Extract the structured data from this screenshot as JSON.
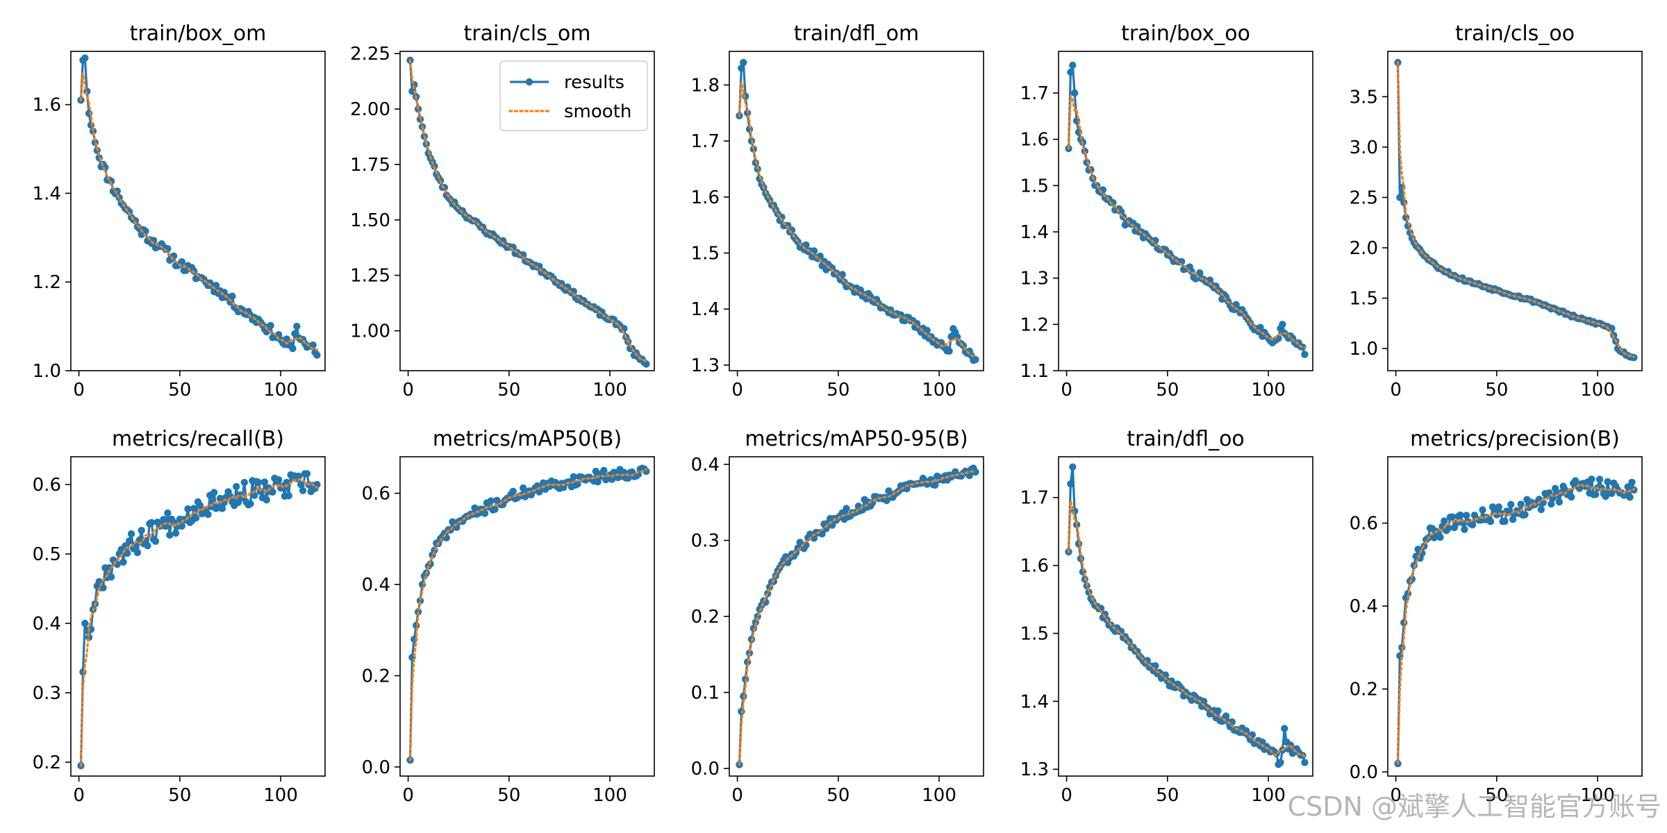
{
  "figure": {
    "legend": {
      "results_label": "results",
      "smooth_label": "smooth",
      "location": "upper-right of train/cls_om"
    },
    "watermark": "CSDN @斌擎人工智能官方账号",
    "colors": {
      "results": "#1f77b4",
      "smooth": "#ff7f0e",
      "axes": "#000000",
      "background": "#ffffff"
    }
  },
  "chart_data": [
    {
      "type": "line",
      "title": "train/box_om",
      "x_ticks": [
        0,
        50,
        100
      ],
      "xlim": [
        -4,
        122
      ],
      "ylim": [
        1.0,
        1.72
      ],
      "y_ticks": [
        1.0,
        1.2,
        1.4,
        1.6
      ],
      "y_tick_labels": [
        "1.0",
        "1.2",
        "1.4",
        "1.6"
      ],
      "legend": false,
      "anchors": [
        [
          1,
          1.61
        ],
        [
          2,
          1.7
        ],
        [
          3,
          1.705
        ],
        [
          4,
          1.63
        ],
        [
          5,
          1.58
        ],
        [
          7,
          1.54
        ],
        [
          10,
          1.48
        ],
        [
          15,
          1.43
        ],
        [
          20,
          1.39
        ],
        [
          30,
          1.32
        ],
        [
          40,
          1.28
        ],
        [
          50,
          1.24
        ],
        [
          60,
          1.21
        ],
        [
          70,
          1.18
        ],
        [
          80,
          1.14
        ],
        [
          90,
          1.11
        ],
        [
          100,
          1.07
        ],
        [
          106,
          1.05
        ],
        [
          108,
          1.1
        ],
        [
          110,
          1.07
        ],
        [
          115,
          1.055
        ],
        [
          118,
          1.035
        ]
      ],
      "noise": 0.012,
      "seed": 11
    },
    {
      "type": "line",
      "title": "train/cls_om",
      "x_ticks": [
        0,
        50,
        100
      ],
      "xlim": [
        -4,
        122
      ],
      "ylim": [
        0.82,
        2.26
      ],
      "y_ticks": [
        1.0,
        1.25,
        1.5,
        1.75,
        2.0,
        2.25
      ],
      "y_tick_labels": [
        "1.00",
        "1.25",
        "1.50",
        "1.75",
        "2.00",
        "2.25"
      ],
      "legend": true,
      "anchors": [
        [
          1,
          2.22
        ],
        [
          2,
          2.08
        ],
        [
          3,
          2.11
        ],
        [
          5,
          2.0
        ],
        [
          7,
          1.92
        ],
        [
          10,
          1.8
        ],
        [
          15,
          1.69
        ],
        [
          20,
          1.6
        ],
        [
          30,
          1.51
        ],
        [
          40,
          1.44
        ],
        [
          50,
          1.38
        ],
        [
          60,
          1.31
        ],
        [
          70,
          1.25
        ],
        [
          80,
          1.18
        ],
        [
          90,
          1.11
        ],
        [
          100,
          1.05
        ],
        [
          107,
          1.01
        ],
        [
          110,
          0.92
        ],
        [
          115,
          0.87
        ],
        [
          118,
          0.85
        ]
      ],
      "noise": 0.012,
      "seed": 23
    },
    {
      "type": "line",
      "title": "train/dfl_om",
      "x_ticks": [
        0,
        50,
        100
      ],
      "xlim": [
        -4,
        122
      ],
      "ylim": [
        1.29,
        1.86
      ],
      "y_ticks": [
        1.3,
        1.4,
        1.5,
        1.6,
        1.7,
        1.8
      ],
      "y_tick_labels": [
        "1.3",
        "1.4",
        "1.5",
        "1.6",
        "1.7",
        "1.8"
      ],
      "legend": false,
      "anchors": [
        [
          1,
          1.745
        ],
        [
          2,
          1.83
        ],
        [
          3,
          1.84
        ],
        [
          4,
          1.78
        ],
        [
          5,
          1.75
        ],
        [
          7,
          1.7
        ],
        [
          10,
          1.65
        ],
        [
          15,
          1.6
        ],
        [
          20,
          1.57
        ],
        [
          30,
          1.52
        ],
        [
          40,
          1.49
        ],
        [
          50,
          1.46
        ],
        [
          60,
          1.43
        ],
        [
          70,
          1.41
        ],
        [
          80,
          1.39
        ],
        [
          90,
          1.365
        ],
        [
          100,
          1.34
        ],
        [
          105,
          1.325
        ],
        [
          107,
          1.365
        ],
        [
          110,
          1.34
        ],
        [
          115,
          1.325
        ],
        [
          118,
          1.31
        ]
      ],
      "noise": 0.008,
      "seed": 37
    },
    {
      "type": "line",
      "title": "train/box_oo",
      "x_ticks": [
        0,
        50,
        100
      ],
      "xlim": [
        -4,
        122
      ],
      "ylim": [
        1.1,
        1.79
      ],
      "y_ticks": [
        1.1,
        1.2,
        1.3,
        1.4,
        1.5,
        1.6,
        1.7
      ],
      "y_tick_labels": [
        "1.1",
        "1.2",
        "1.3",
        "1.4",
        "1.5",
        "1.6",
        "1.7"
      ],
      "legend": false,
      "anchors": [
        [
          1,
          1.58
        ],
        [
          2,
          1.745
        ],
        [
          3,
          1.76
        ],
        [
          4,
          1.7
        ],
        [
          5,
          1.64
        ],
        [
          7,
          1.6
        ],
        [
          10,
          1.55
        ],
        [
          15,
          1.5
        ],
        [
          20,
          1.47
        ],
        [
          30,
          1.42
        ],
        [
          40,
          1.39
        ],
        [
          50,
          1.35
        ],
        [
          60,
          1.32
        ],
        [
          70,
          1.29
        ],
        [
          80,
          1.25
        ],
        [
          90,
          1.21
        ],
        [
          100,
          1.17
        ],
        [
          105,
          1.17
        ],
        [
          107,
          1.2
        ],
        [
          110,
          1.17
        ],
        [
          115,
          1.16
        ],
        [
          118,
          1.135
        ]
      ],
      "noise": 0.01,
      "seed": 41
    },
    {
      "type": "line",
      "title": "train/cls_oo",
      "x_ticks": [
        0,
        50,
        100
      ],
      "xlim": [
        -4,
        122
      ],
      "ylim": [
        0.78,
        3.95
      ],
      "y_ticks": [
        1.0,
        1.5,
        2.0,
        2.5,
        3.0,
        3.5
      ],
      "y_tick_labels": [
        "1.0",
        "1.5",
        "2.0",
        "2.5",
        "3.0",
        "3.5"
      ],
      "legend": false,
      "anchors": [
        [
          1,
          3.84
        ],
        [
          2,
          2.5
        ],
        [
          3,
          2.6
        ],
        [
          5,
          2.3
        ],
        [
          7,
          2.15
        ],
        [
          10,
          2.02
        ],
        [
          15,
          1.91
        ],
        [
          20,
          1.82
        ],
        [
          30,
          1.71
        ],
        [
          40,
          1.64
        ],
        [
          50,
          1.58
        ],
        [
          60,
          1.52
        ],
        [
          70,
          1.46
        ],
        [
          80,
          1.38
        ],
        [
          90,
          1.3
        ],
        [
          100,
          1.25
        ],
        [
          107,
          1.2
        ],
        [
          110,
          1.0
        ],
        [
          115,
          0.93
        ],
        [
          118,
          0.91
        ]
      ],
      "noise": 0.015,
      "seed": 53
    },
    {
      "type": "line",
      "title": "metrics/recall(B)",
      "x_ticks": [
        0,
        50,
        100
      ],
      "xlim": [
        -4,
        122
      ],
      "ylim": [
        0.18,
        0.64
      ],
      "y_ticks": [
        0.2,
        0.3,
        0.4,
        0.5,
        0.6
      ],
      "y_tick_labels": [
        "0.2",
        "0.3",
        "0.4",
        "0.5",
        "0.6"
      ],
      "legend": false,
      "anchors": [
        [
          1,
          0.195
        ],
        [
          2,
          0.33
        ],
        [
          3,
          0.4
        ],
        [
          5,
          0.38
        ],
        [
          7,
          0.42
        ],
        [
          10,
          0.46
        ],
        [
          15,
          0.48
        ],
        [
          20,
          0.5
        ],
        [
          30,
          0.52
        ],
        [
          40,
          0.54
        ],
        [
          50,
          0.55
        ],
        [
          60,
          0.57
        ],
        [
          70,
          0.58
        ],
        [
          80,
          0.585
        ],
        [
          90,
          0.59
        ],
        [
          100,
          0.595
        ],
        [
          110,
          0.6
        ],
        [
          118,
          0.6
        ]
      ],
      "noise": 0.018,
      "seed": 67
    },
    {
      "type": "line",
      "title": "metrics/mAP50(B)",
      "x_ticks": [
        0,
        50,
        100
      ],
      "xlim": [
        -4,
        122
      ],
      "ylim": [
        -0.02,
        0.68
      ],
      "y_ticks": [
        0.0,
        0.2,
        0.4,
        0.6
      ],
      "y_tick_labels": [
        "0.0",
        "0.2",
        "0.4",
        "0.6"
      ],
      "legend": false,
      "anchors": [
        [
          1,
          0.015
        ],
        [
          2,
          0.24
        ],
        [
          3,
          0.28
        ],
        [
          5,
          0.34
        ],
        [
          7,
          0.4
        ],
        [
          10,
          0.44
        ],
        [
          15,
          0.49
        ],
        [
          20,
          0.52
        ],
        [
          30,
          0.55
        ],
        [
          40,
          0.57
        ],
        [
          50,
          0.59
        ],
        [
          60,
          0.605
        ],
        [
          70,
          0.615
        ],
        [
          80,
          0.625
        ],
        [
          90,
          0.635
        ],
        [
          100,
          0.64
        ],
        [
          110,
          0.645
        ],
        [
          118,
          0.648
        ]
      ],
      "noise": 0.012,
      "seed": 71
    },
    {
      "type": "line",
      "title": "metrics/mAP50-95(B)",
      "x_ticks": [
        0,
        50,
        100
      ],
      "xlim": [
        -4,
        122
      ],
      "ylim": [
        -0.01,
        0.41
      ],
      "y_ticks": [
        0.0,
        0.1,
        0.2,
        0.3,
        0.4
      ],
      "y_tick_labels": [
        "0.0",
        "0.1",
        "0.2",
        "0.3",
        "0.4"
      ],
      "legend": false,
      "anchors": [
        [
          1,
          0.005
        ],
        [
          2,
          0.075
        ],
        [
          3,
          0.095
        ],
        [
          5,
          0.14
        ],
        [
          7,
          0.17
        ],
        [
          10,
          0.2
        ],
        [
          15,
          0.23
        ],
        [
          20,
          0.26
        ],
        [
          30,
          0.29
        ],
        [
          40,
          0.31
        ],
        [
          50,
          0.33
        ],
        [
          60,
          0.345
        ],
        [
          70,
          0.355
        ],
        [
          80,
          0.365
        ],
        [
          90,
          0.375
        ],
        [
          100,
          0.38
        ],
        [
          110,
          0.385
        ],
        [
          118,
          0.39
        ]
      ],
      "noise": 0.007,
      "seed": 83
    },
    {
      "type": "line",
      "title": "train/dfl_oo",
      "x_ticks": [
        0,
        50,
        100
      ],
      "xlim": [
        -4,
        122
      ],
      "ylim": [
        1.29,
        1.76
      ],
      "y_ticks": [
        1.3,
        1.4,
        1.5,
        1.6,
        1.7
      ],
      "y_tick_labels": [
        "1.3",
        "1.4",
        "1.5",
        "1.6",
        "1.7"
      ],
      "legend": false,
      "anchors": [
        [
          1,
          1.62
        ],
        [
          2,
          1.72
        ],
        [
          3,
          1.745
        ],
        [
          4,
          1.68
        ],
        [
          5,
          1.66
        ],
        [
          7,
          1.61
        ],
        [
          10,
          1.57
        ],
        [
          15,
          1.54
        ],
        [
          20,
          1.52
        ],
        [
          30,
          1.49
        ],
        [
          40,
          1.46
        ],
        [
          50,
          1.43
        ],
        [
          60,
          1.41
        ],
        [
          70,
          1.39
        ],
        [
          80,
          1.37
        ],
        [
          90,
          1.35
        ],
        [
          100,
          1.33
        ],
        [
          106,
          1.31
        ],
        [
          108,
          1.36
        ],
        [
          110,
          1.33
        ],
        [
          115,
          1.325
        ],
        [
          118,
          1.31
        ]
      ],
      "noise": 0.007,
      "seed": 97
    },
    {
      "type": "line",
      "title": "metrics/precision(B)",
      "x_ticks": [
        0,
        50,
        100
      ],
      "xlim": [
        -4,
        122
      ],
      "ylim": [
        -0.01,
        0.76
      ],
      "y_ticks": [
        0.0,
        0.2,
        0.4,
        0.6
      ],
      "y_tick_labels": [
        "0.0",
        "0.2",
        "0.4",
        "0.6"
      ],
      "legend": false,
      "anchors": [
        [
          1,
          0.02
        ],
        [
          2,
          0.28
        ],
        [
          3,
          0.3
        ],
        [
          5,
          0.42
        ],
        [
          7,
          0.46
        ],
        [
          10,
          0.52
        ],
        [
          15,
          0.56
        ],
        [
          20,
          0.58
        ],
        [
          30,
          0.6
        ],
        [
          40,
          0.61
        ],
        [
          50,
          0.62
        ],
        [
          60,
          0.63
        ],
        [
          70,
          0.65
        ],
        [
          80,
          0.67
        ],
        [
          90,
          0.69
        ],
        [
          100,
          0.685
        ],
        [
          110,
          0.68
        ],
        [
          118,
          0.68
        ]
      ],
      "noise": 0.022,
      "seed": 109
    }
  ]
}
